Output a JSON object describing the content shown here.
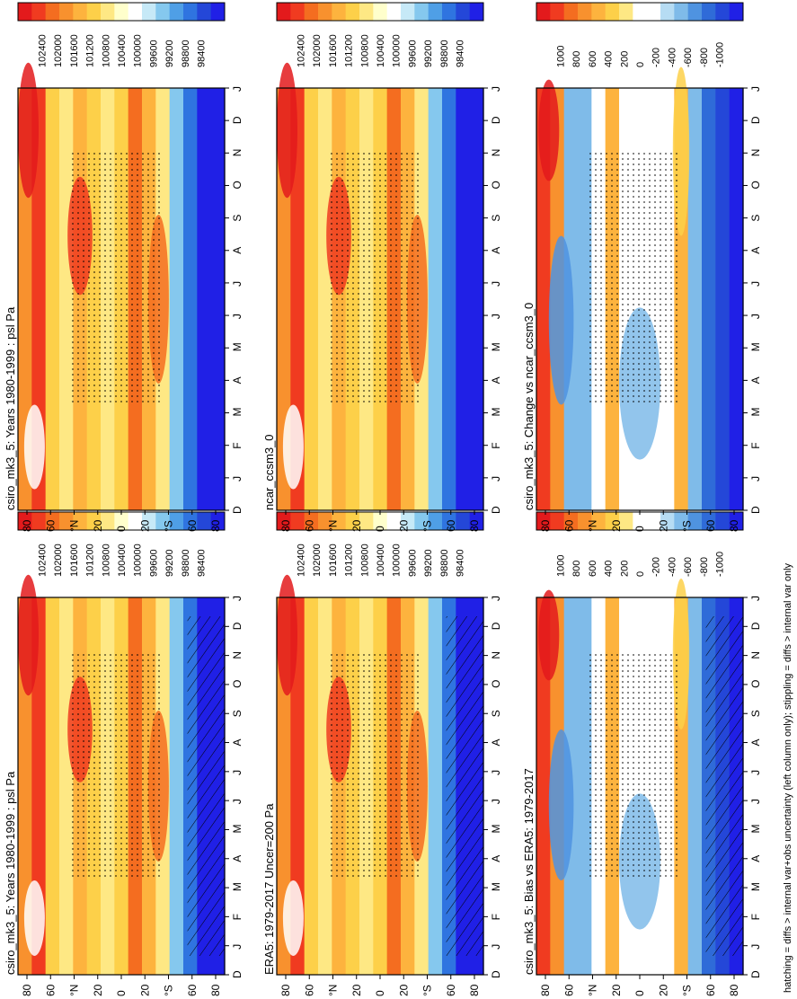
{
  "figure": {
    "footnote": "hatching = diffs > internal var+obs uncertainty (left column only); stippling = diffs > internal var only"
  },
  "colors": {
    "abs_scale": [
      "#e31a1c",
      "#f03b20",
      "#f46d20",
      "#f8912e",
      "#fdb33e",
      "#fdd049",
      "#fee884",
      "#ffffcc",
      "#ffffff",
      "#c6e9f7",
      "#85c8ee",
      "#4f9fe6",
      "#2f74e0",
      "#2447d8",
      "#2020e6"
    ],
    "diff_scale": [
      "#e31a1c",
      "#f03b20",
      "#f46d20",
      "#f8912e",
      "#fdb33e",
      "#fdd049",
      "#fee884",
      "#ffffff",
      "#ffffff",
      "#b6dcf3",
      "#7fbbe9",
      "#4f93e0",
      "#2f6bd8",
      "#2447d8",
      "#2020e6"
    ]
  },
  "chart_data": [
    {
      "id": "p1",
      "type": "heatmap",
      "title": "csiro_mk3_5: Years 1980-1999 : psl Pa",
      "xlabel": "",
      "ylabel": "",
      "x_ticks": [
        "D",
        "J",
        "F",
        "M",
        "A",
        "M",
        "J",
        "J",
        "A",
        "S",
        "O",
        "N",
        "D",
        "J"
      ],
      "y_ticks": [
        "80",
        "60",
        "°N",
        "20",
        "0",
        "20",
        "°S",
        "60",
        "80"
      ],
      "colorbar": [
        "102400",
        "102000",
        "101600",
        "101200",
        "100800",
        "100400",
        "100000",
        "99600",
        "99200",
        "98800",
        "98400"
      ],
      "scale": "abs",
      "hatching": true,
      "stippling": true
    },
    {
      "id": "p2",
      "type": "heatmap",
      "title": "csiro_mk3_5: Years 1980-1999 : psl Pa",
      "xlabel": "",
      "ylabel": "",
      "x_ticks": [
        "D",
        "J",
        "F",
        "M",
        "A",
        "M",
        "J",
        "J",
        "A",
        "S",
        "O",
        "N",
        "D",
        "J"
      ],
      "y_ticks": [
        "80",
        "60",
        "°N",
        "20",
        "0",
        "20",
        "°S",
        "60",
        "80"
      ],
      "colorbar": [
        "102400",
        "102000",
        "101600",
        "101200",
        "100800",
        "100400",
        "100000",
        "99600",
        "99200",
        "98800",
        "98400"
      ],
      "scale": "abs",
      "hatching": false,
      "stippling": true
    },
    {
      "id": "p3",
      "type": "heatmap",
      "title": "ERA5: 1979-2017 Uncer=200 Pa",
      "xlabel": "",
      "ylabel": "",
      "x_ticks": [
        "D",
        "J",
        "F",
        "M",
        "A",
        "M",
        "J",
        "J",
        "A",
        "S",
        "O",
        "N",
        "D",
        "J"
      ],
      "y_ticks": [
        "80",
        "60",
        "°N",
        "20",
        "0",
        "20",
        "°S",
        "60",
        "80"
      ],
      "colorbar": [
        "102400",
        "102000",
        "101600",
        "101200",
        "100800",
        "100400",
        "100000",
        "99600",
        "99200",
        "98800",
        "98400"
      ],
      "scale": "abs",
      "hatching": true,
      "stippling": true
    },
    {
      "id": "p4",
      "type": "heatmap",
      "title": "ncar_ccsm3_0",
      "xlabel": "",
      "ylabel": "",
      "x_ticks": [
        "D",
        "J",
        "F",
        "M",
        "A",
        "M",
        "J",
        "J",
        "A",
        "S",
        "O",
        "N",
        "D",
        "J"
      ],
      "y_ticks": [
        "80",
        "60",
        "°N",
        "20",
        "0",
        "20",
        "°S",
        "60",
        "80"
      ],
      "colorbar": [
        "102400",
        "102000",
        "101600",
        "101200",
        "100800",
        "100400",
        "100000",
        "99600",
        "99200",
        "98800",
        "98400"
      ],
      "scale": "abs",
      "hatching": false,
      "stippling": true
    },
    {
      "id": "p5",
      "type": "heatmap",
      "title": "csiro_mk3_5: Bias vs ERA5: 1979-2017",
      "xlabel": "",
      "ylabel": "",
      "x_ticks": [
        "D",
        "J",
        "F",
        "M",
        "A",
        "M",
        "J",
        "J",
        "A",
        "S",
        "O",
        "N",
        "D",
        "J"
      ],
      "y_ticks": [
        "80",
        "60",
        "°N",
        "20",
        "0",
        "20",
        "°S",
        "60",
        "80"
      ],
      "colorbar": [
        "1000",
        "800",
        "600",
        "400",
        "200",
        "0",
        "-200",
        "-400",
        "-600",
        "-800",
        "-1000"
      ],
      "scale": "diff",
      "hatching": true,
      "stippling": true
    },
    {
      "id": "p6",
      "type": "heatmap",
      "title": "csiro_mk3_5: Change vs ncar_ccsm3_0",
      "xlabel": "",
      "ylabel": "",
      "x_ticks": [
        "D",
        "J",
        "F",
        "M",
        "A",
        "M",
        "J",
        "J",
        "A",
        "S",
        "O",
        "N",
        "D",
        "J"
      ],
      "y_ticks": [
        "80",
        "60",
        "°N",
        "20",
        "0",
        "20",
        "°S",
        "60",
        "80"
      ],
      "colorbar": [
        "1000",
        "800",
        "600",
        "400",
        "200",
        "0",
        "-200",
        "-400",
        "-600",
        "-800",
        "-1000"
      ],
      "scale": "diff",
      "hatching": false,
      "stippling": true
    }
  ]
}
